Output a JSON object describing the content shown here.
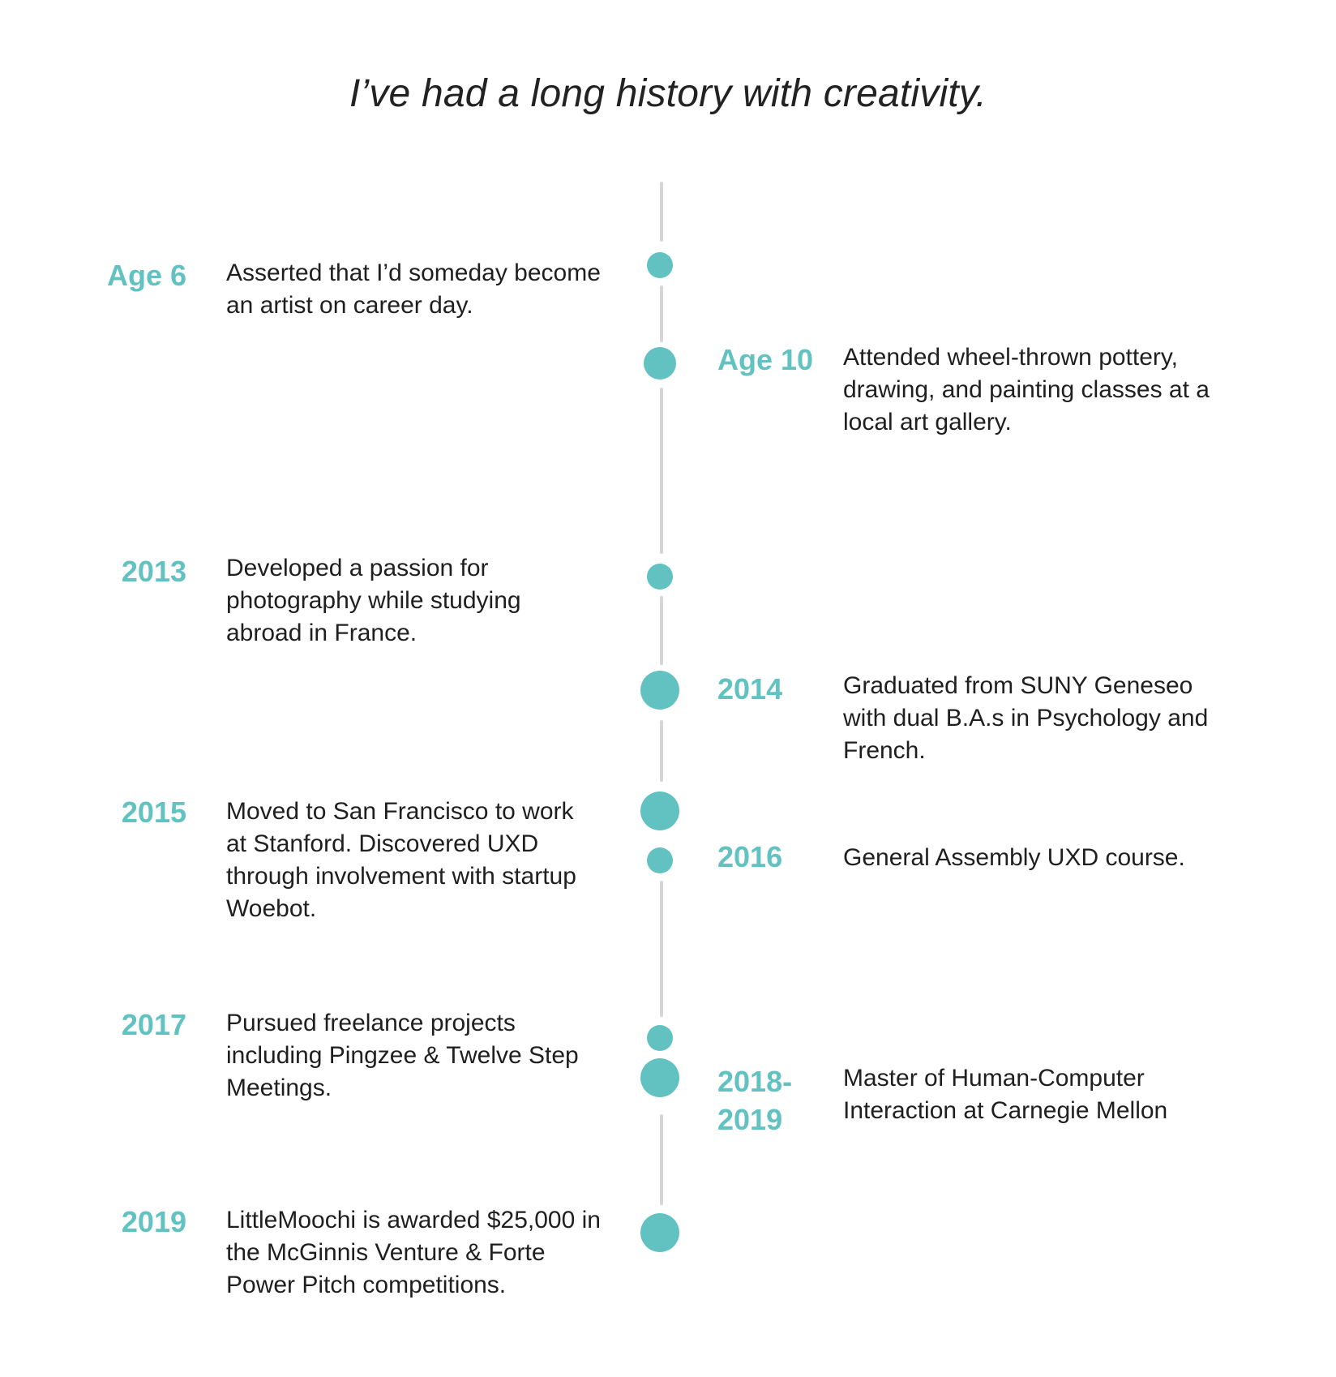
{
  "title": "I’ve had a long history with creativity.",
  "colors": {
    "accent": "#62c2c1",
    "line": "#d6d6d6",
    "text": "#1f1f1f"
  },
  "events": [
    {
      "date": "Age 6",
      "description": "Asserted that I’d someday become an artist on career day."
    },
    {
      "date": "Age 10",
      "description": "Attended wheel-thrown pottery, drawing, and painting classes at a local art gallery."
    },
    {
      "date": "2013",
      "description": "Developed a passion for photography while studying abroad in France."
    },
    {
      "date": "2014",
      "description": "Graduated from SUNY Geneseo with dual B.A.s in Psychology and French."
    },
    {
      "date": "2015",
      "description": "Moved to San Francisco to work at Stanford. Discovered UXD through involvement with startup Woebot."
    },
    {
      "date": "2016",
      "description": "General Assembly UXD course."
    },
    {
      "date": "2017",
      "description": "Pursued freelance projects including Pingzee & Twelve Step Meetings."
    },
    {
      "date": "2018-2019",
      "description": "Master of Human-Computer Interaction at Carnegie Mellon"
    },
    {
      "date": "2019",
      "description": "LittleMoochi is awarded $25,000 in the McGinnis Venture & Forte Power Pitch competitions."
    }
  ]
}
